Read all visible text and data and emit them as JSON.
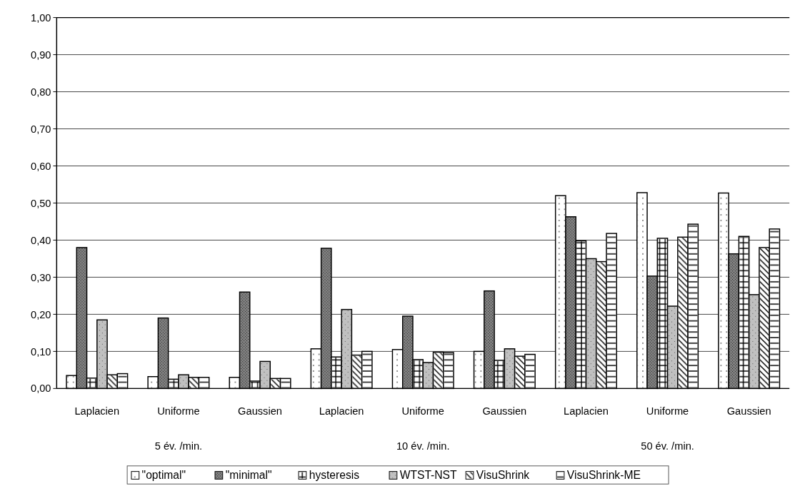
{
  "chart_data": {
    "type": "bar",
    "categories": [
      "Laplacien",
      "Uniforme",
      "Gaussien",
      "Laplacien",
      "Uniforme",
      "Gaussien",
      "Laplacien",
      "Uniforme",
      "Gaussien"
    ],
    "series": [
      {
        "name": "\"optimal\"",
        "color": "#ffffff",
        "values": [
          0.035,
          0.032,
          0.03,
          0.107,
          0.105,
          0.1,
          0.52,
          0.528,
          0.527
        ]
      },
      {
        "name": "\"minimal\"",
        "color": "#808080",
        "values": [
          0.38,
          0.19,
          0.26,
          0.378,
          0.195,
          0.263,
          0.463,
          0.303,
          0.363
        ]
      },
      {
        "name": "hysteresis",
        "color": "#ffffff",
        "values": [
          0.028,
          0.025,
          0.02,
          0.085,
          0.078,
          0.076,
          0.398,
          0.405,
          0.41
        ]
      },
      {
        "name": "WTST-NST",
        "color": "#c0c0c0",
        "values": [
          0.185,
          0.037,
          0.073,
          0.213,
          0.07,
          0.107,
          0.35,
          0.222,
          0.253
        ]
      },
      {
        "name": "VisuShrink",
        "color": "#ffffff",
        "values": [
          0.037,
          0.03,
          0.027,
          0.09,
          0.098,
          0.087,
          0.342,
          0.408,
          0.38
        ]
      },
      {
        "name": "VisuShrink-ME",
        "color": "#ffffff",
        "values": [
          0.04,
          0.03,
          0.027,
          0.1,
          0.097,
          0.092,
          0.418,
          0.443,
          0.43
        ]
      }
    ],
    "ylim": [
      0,
      1
    ],
    "yticks": [
      {
        "value": 0,
        "label": "0,00"
      },
      {
        "value": 0.1,
        "label": "0,10"
      },
      {
        "value": 0.2,
        "label": "0,20"
      },
      {
        "value": 0.3,
        "label": "0,30"
      },
      {
        "value": 0.4,
        "label": "0,40"
      },
      {
        "value": 0.5,
        "label": "0,50"
      },
      {
        "value": 0.6,
        "label": "0,60"
      },
      {
        "value": 0.7,
        "label": "0,70"
      },
      {
        "value": 0.8,
        "label": "0,80"
      },
      {
        "value": 0.9,
        "label": "0,90"
      },
      {
        "value": 1,
        "label": "1,00"
      }
    ],
    "annotations": [
      "5 év. /min.",
      "10 év. /min.",
      "50 év. /min."
    ],
    "grid": "y",
    "legend": "bottom"
  }
}
